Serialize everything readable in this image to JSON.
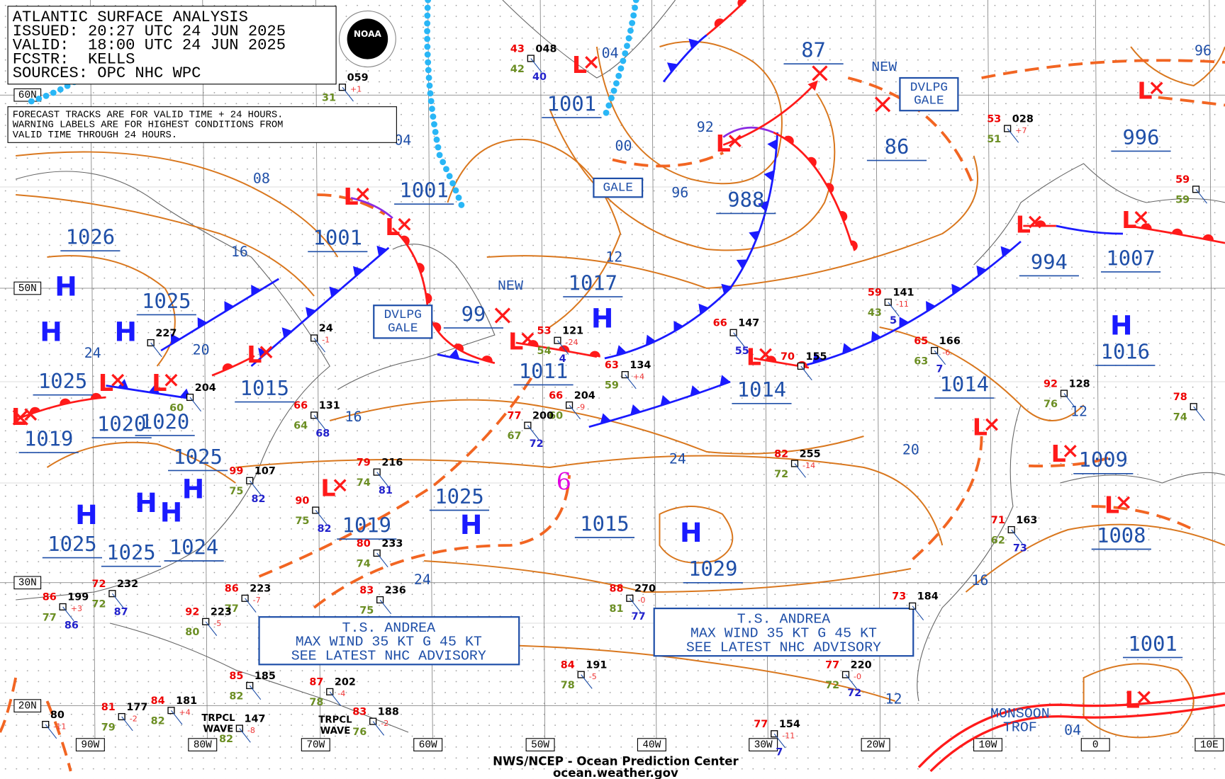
{
  "header": {
    "lines": [
      "ATLANTIC SURFACE ANALYSIS",
      "ISSUED: 20:27 UTC 24 JUN 2025",
      "VALID:  18:00 UTC 24 JUN 2025",
      "FCSTR:  KELLS",
      "SOURCES: OPC NHC WPC"
    ],
    "logo": "NOAA"
  },
  "note": {
    "lines": [
      "FORECAST TRACKS ARE FOR VALID TIME + 24 HOURS.",
      "WARNING LABELS ARE FOR HIGHEST CONDITIONS FROM",
      "VALID TIME THROUGH 24 HOURS."
    ]
  },
  "lat_labels": [
    "60N",
    "50N",
    "30N",
    "20N"
  ],
  "lon_labels": [
    "90W",
    "80W",
    "70W",
    "60W",
    "50W",
    "40W",
    "30W",
    "20W",
    "10W",
    "0",
    "10E"
  ],
  "high_symbol": "H",
  "low_symbol": "L",
  "pressure_labels": [
    "1026",
    "1025",
    "1025",
    "1019",
    "1020",
    "1020",
    "1025",
    "1015",
    "1001",
    "1001",
    "1001",
    "988",
    "1017",
    "1011",
    "99",
    "1014",
    "1014",
    "994",
    "1007",
    "996",
    "1016",
    "1009",
    "1008",
    "1025",
    "1019",
    "1015",
    "1029",
    "1025",
    "1025",
    "1024",
    "1001",
    "87",
    "86"
  ],
  "isobar_labels": [
    "08",
    "16",
    "24",
    "20",
    "16",
    "12",
    "04",
    "00",
    "96",
    "92",
    "04",
    "24",
    "20",
    "24",
    "16",
    "12",
    "04",
    "12",
    "96"
  ],
  "boxes": {
    "dvlpg_gale_west": [
      "DVLPG",
      "GALE"
    ],
    "dvlpg_gale_east": [
      "DVLPG",
      "GALE"
    ],
    "gale": "GALE",
    "andrea_west": [
      "T.S. ANDREA",
      "MAX WIND 35 KT G 45 KT",
      "SEE LATEST NHC ADVISORY"
    ],
    "andrea_east": [
      "T.S. ANDREA",
      "MAX WIND 35 KT G 45 KT",
      "SEE LATEST NHC ADVISORY"
    ]
  },
  "annotations": {
    "new": [
      "NEW",
      "NEW"
    ],
    "monsoon": [
      "MONSOON",
      "TROF"
    ],
    "tropical_waves": [
      [
        "TRPCL",
        "WAVE"
      ],
      [
        "TRPCL",
        "WAVE"
      ]
    ],
    "storm_symbol": "6"
  },
  "stations": [
    {
      "t": "43",
      "p": "048",
      "d": "42",
      "v": "40"
    },
    {
      "p": "059",
      "tend": "+1",
      "d": "31"
    },
    {
      "t": "53",
      "p": "028",
      "tend": "+7",
      "d": "51"
    },
    {
      "t": "59",
      "d": "59"
    },
    {
      "t": "59",
      "p": "141",
      "tend": "-11",
      "d": "43",
      "v": "5"
    },
    {
      "t": "66",
      "p": "147",
      "v": "55"
    },
    {
      "t": "53",
      "p": "121",
      "tend": "-24",
      "d": "54",
      "v": "4"
    },
    {
      "t": "63",
      "p": "134",
      "tend": "+4",
      "d": "59"
    },
    {
      "t": "65",
      "p": "166",
      "tend": "-6",
      "d": "63",
      "v": "7"
    },
    {
      "t": "70",
      "p": "155"
    },
    {
      "t": "66",
      "p": "204",
      "tend": "-9",
      "d": "60"
    },
    {
      "t": "77",
      "p": "200",
      "d": "67",
      "v": "72"
    },
    {
      "t": "92",
      "p": "128",
      "d": "76"
    },
    {
      "t": "78",
      "d": "74"
    },
    {
      "t": "82",
      "p": "255",
      "tend": "-14",
      "d": "72"
    },
    {
      "t": "79",
      "p": "216",
      "d": "74",
      "v": "81"
    },
    {
      "t": "66",
      "p": "131",
      "d": "64",
      "v": "68"
    },
    {
      "t": "99",
      "p": "107",
      "d": "75",
      "v": "82"
    },
    {
      "t": "90",
      "d": "75",
      "v": "82"
    },
    {
      "t": "71",
      "p": "163",
      "d": "62",
      "v": "73"
    },
    {
      "t": "80",
      "p": "233",
      "d": "74"
    },
    {
      "t": "83",
      "p": "236",
      "d": "75"
    },
    {
      "t": "86",
      "p": "223",
      "tend": "-7",
      "d": "77"
    },
    {
      "t": "86",
      "p": "199",
      "tend": "+3",
      "d": "77",
      "v": "86"
    },
    {
      "t": "72",
      "p": "232",
      "d": "72",
      "v": "87"
    },
    {
      "t": "92",
      "p": "223",
      "tend": "-5",
      "d": "80"
    },
    {
      "t": "88",
      "p": "270",
      "tend": "-0",
      "d": "81",
      "v": "77"
    },
    {
      "t": "73",
      "p": "184"
    },
    {
      "t": "84",
      "p": "191",
      "tend": "-5",
      "d": "78"
    },
    {
      "t": "77",
      "p": "220",
      "tend": "-0",
      "d": "72",
      "v": "72"
    },
    {
      "t": "85",
      "p": "185",
      "d": "82"
    },
    {
      "t": "87",
      "p": "202",
      "tend": "-4",
      "d": "78"
    },
    {
      "t": "84",
      "p": "181",
      "tend": "+4",
      "d": "82"
    },
    {
      "t": "81",
      "p": "177",
      "tend": "-2",
      "d": "79"
    },
    {
      "p": "80",
      "tend": "-11"
    },
    {
      "t": "83",
      "p": "188",
      "tend": "-2",
      "d": "76"
    },
    {
      "p": "147",
      "tend": "-8",
      "d": "82"
    },
    {
      "t": "77",
      "p": "154",
      "tend": "-11",
      "v": "7"
    },
    {
      "p": "227"
    },
    {
      "p": "24",
      "tend": "-1"
    },
    {
      "p": "204",
      "d": "60"
    }
  ],
  "footer": [
    "NWS/NCEP - Ocean Prediction Center",
    "ocean.weather.gov"
  ]
}
